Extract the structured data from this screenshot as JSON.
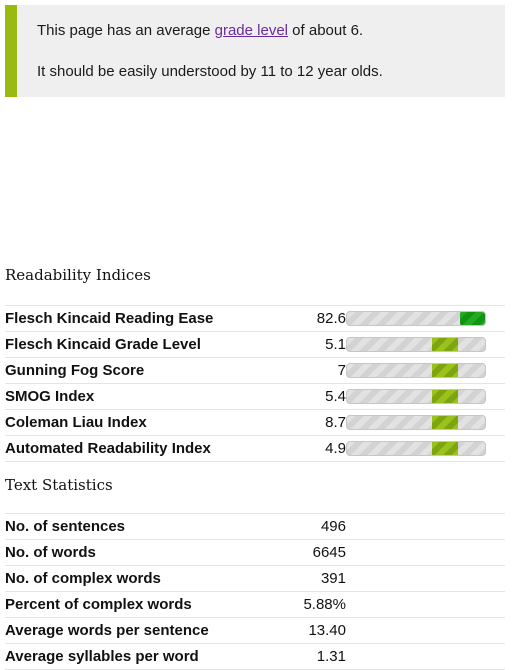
{
  "summary": {
    "line1_pre": "This page has an average ",
    "line1_link": "grade level",
    "line1_post": " of about 6.",
    "line2": "It should be easily understood by 11 to 12 year olds.",
    "accent_color": "#99bb11"
  },
  "readability": {
    "heading": "Readability Indices",
    "rows": [
      {
        "label": "Flesch Kincaid Reading Ease",
        "value": "82.6"
      },
      {
        "label": "Flesch Kincaid Grade Level",
        "value": "5.1"
      },
      {
        "label": "Gunning Fog Score",
        "value": "7"
      },
      {
        "label": "SMOG Index",
        "value": "5.4"
      },
      {
        "label": "Coleman Liau Index",
        "value": "8.7"
      },
      {
        "label": "Automated Readability Index",
        "value": "4.9"
      }
    ]
  },
  "text_statistics": {
    "heading": "Text Statistics",
    "rows": [
      {
        "label": "No. of sentences",
        "value": "496"
      },
      {
        "label": "No. of words",
        "value": "6645"
      },
      {
        "label": "No. of complex words",
        "value": "391"
      },
      {
        "label": "Percent of complex words",
        "value": "5.88%"
      },
      {
        "label": "Average words per sentence",
        "value": "13.40"
      },
      {
        "label": "Average syllables per word",
        "value": "1.31"
      }
    ]
  },
  "gauge_levels": [
    0.9,
    0.7,
    0.7,
    0.7,
    0.7,
    0.7
  ],
  "colors": {
    "gauge_ease": "#22aa22",
    "gauge_grade": "#9bc21c"
  }
}
